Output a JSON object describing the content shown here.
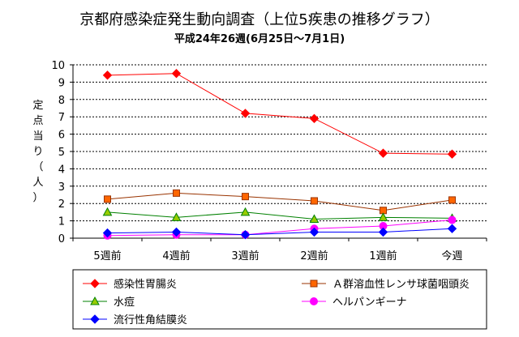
{
  "chart_data": {
    "type": "line",
    "title": "京都府感染症発生動向調査（上位5疾患の推移グラフ）",
    "subtitle": "平成24年26週(6月25日～7月1日)",
    "xlabel": "",
    "ylabel": "定点当り（人）",
    "ylabel_chars": [
      "定",
      "点",
      "当",
      "り",
      "（",
      "人",
      "）"
    ],
    "categories": [
      "5週前",
      "4週前",
      "3週前",
      "2週前",
      "1週前",
      "今週"
    ],
    "ylim": [
      0,
      10
    ],
    "yticks": [
      "0",
      "1",
      "2",
      "3",
      "4",
      "5",
      "6",
      "7",
      "8",
      "9",
      "10"
    ],
    "grid": true,
    "legend_position": "bottom",
    "series": [
      {
        "name": "感染性胃腸炎",
        "values": [
          9.4,
          9.5,
          7.2,
          6.9,
          4.9,
          4.85
        ],
        "color": "#ff0000",
        "marker": "diamond",
        "marker_fill": "#ff0000"
      },
      {
        "name": "Ａ群溶血性レンサ球菌咽頭炎",
        "values": [
          2.25,
          2.6,
          2.4,
          2.15,
          1.6,
          2.2
        ],
        "color": "#993300",
        "marker": "square",
        "marker_fill": "#ff6600"
      },
      {
        "name": "水痘",
        "values": [
          1.5,
          1.2,
          1.5,
          1.1,
          1.2,
          1.15
        ],
        "color": "#008000",
        "marker": "triangle",
        "marker_fill": "#99cc00"
      },
      {
        "name": "ヘルパンギーナ",
        "values": [
          0.15,
          0.2,
          0.2,
          0.55,
          0.7,
          1.05
        ],
        "color": "#ff00ff",
        "marker": "circle",
        "marker_fill": "#ff00ff"
      },
      {
        "name": "流行性角結膜炎",
        "values": [
          0.3,
          0.35,
          0.2,
          0.35,
          0.35,
          0.55
        ],
        "color": "#0000ff",
        "marker": "diamond",
        "marker_fill": "#0000ff"
      }
    ]
  }
}
